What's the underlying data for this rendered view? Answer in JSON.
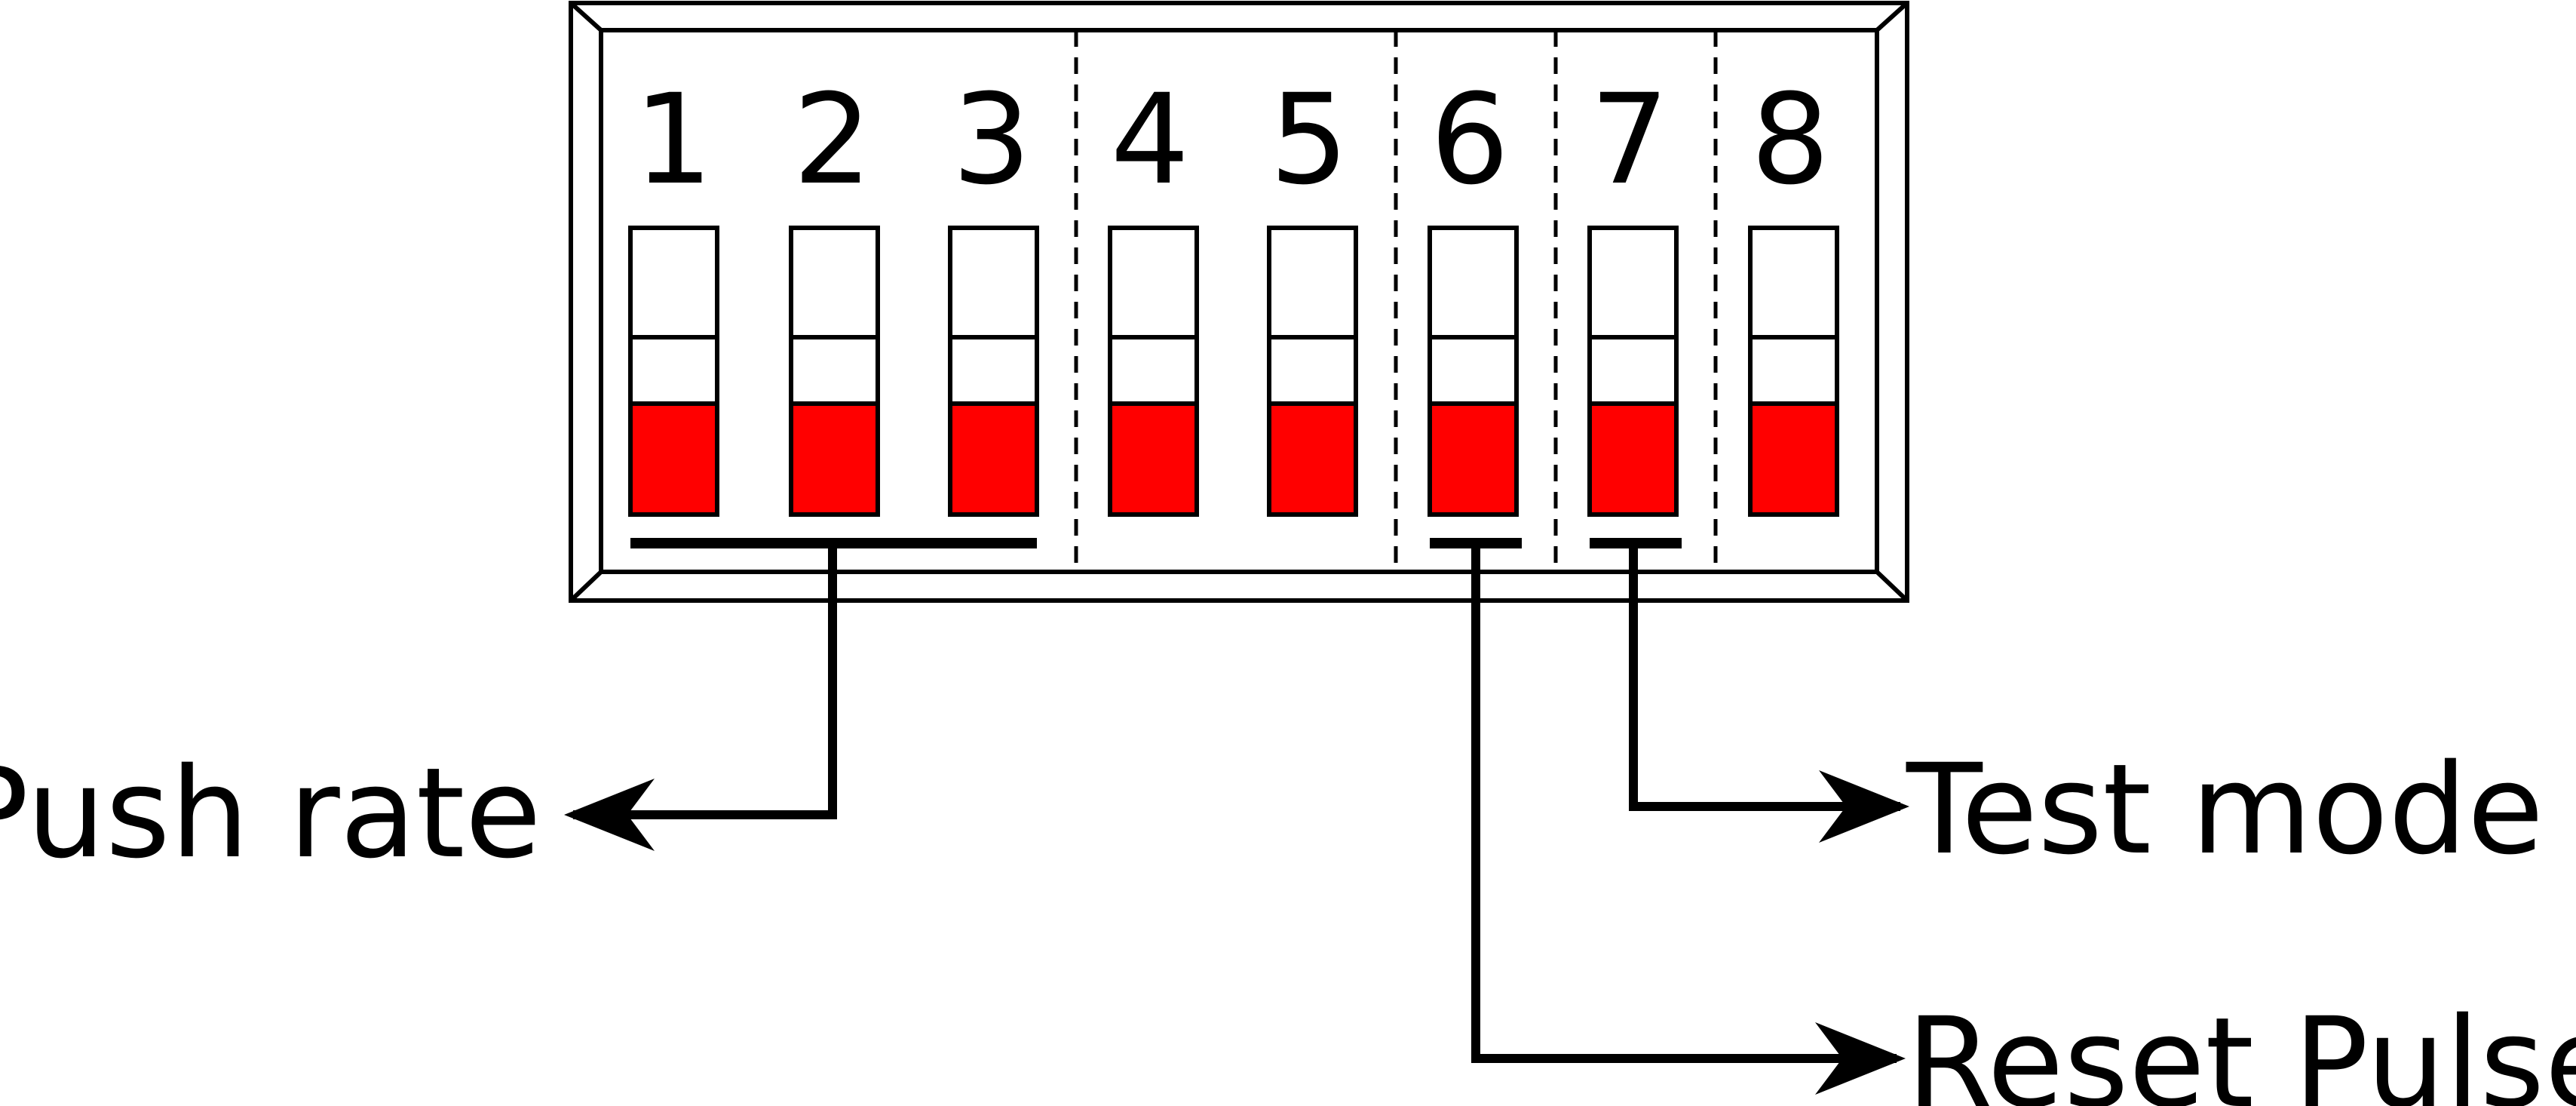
{
  "dip_switch": {
    "switches": [
      {
        "number": "1",
        "state": "off"
      },
      {
        "number": "2",
        "state": "off"
      },
      {
        "number": "3",
        "state": "off"
      },
      {
        "number": "4",
        "state": "off"
      },
      {
        "number": "5",
        "state": "off"
      },
      {
        "number": "6",
        "state": "off"
      },
      {
        "number": "7",
        "state": "off"
      },
      {
        "number": "8",
        "state": "off"
      }
    ],
    "actuator_color": "#ff0000",
    "line_color": "#000000"
  },
  "callouts": {
    "push_rate": "Push rate",
    "reset_pulse": "Reset Pulse",
    "test_mode": "Test mode"
  }
}
